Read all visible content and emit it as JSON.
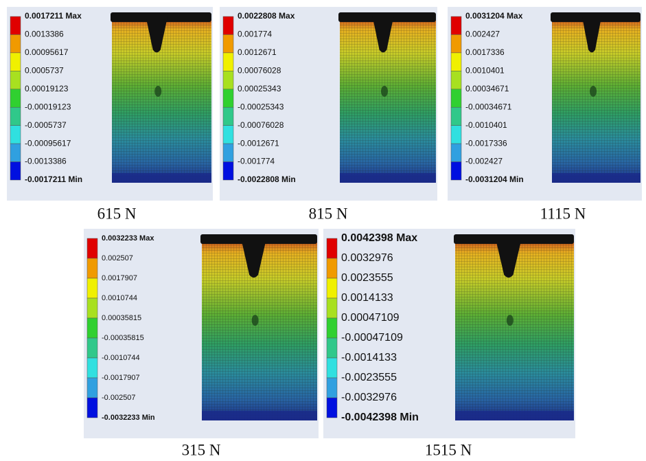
{
  "panels": [
    {
      "legend": [
        "0.0017211 Max",
        "0.0013386",
        "0.00095617",
        "0.0005737",
        "0.00019123",
        "-0.00019123",
        "-0.0005737",
        "-0.00095617",
        "-0.0013386",
        "-0.0017211 Min"
      ],
      "caption": "615 N"
    },
    {
      "legend": [
        "0.0022808 Max",
        "0.001774",
        "0.0012671",
        "0.00076028",
        "0.00025343",
        "-0.00025343",
        "-0.00076028",
        "-0.0012671",
        "-0.001774",
        "-0.0022808 Min"
      ],
      "caption": "815 N"
    },
    {
      "legend": [
        "0.0031204 Max",
        "0.002427",
        "0.0017336",
        "0.0010401",
        "0.00034671",
        "-0.00034671",
        "-0.0010401",
        "-0.0017336",
        "-0.002427",
        "-0.0031204 Min"
      ],
      "caption": "1115 N"
    },
    {
      "legend": [
        "0.0032233 Max",
        "0.002507",
        "0.0017907",
        "0.0010744",
        "0.00035815",
        "-0.00035815",
        "-0.0010744",
        "-0.0017907",
        "-0.002507",
        "-0.0032233 Min"
      ],
      "caption": "315 N"
    },
    {
      "legend": [
        "0.0042398 Max",
        "0.0032976",
        "0.0023555",
        "0.0014133",
        "0.00047109",
        "-0.00047109",
        "-0.0014133",
        "-0.0023555",
        "-0.0032976",
        "-0.0042398 Min"
      ],
      "caption": "1515 N"
    }
  ]
}
